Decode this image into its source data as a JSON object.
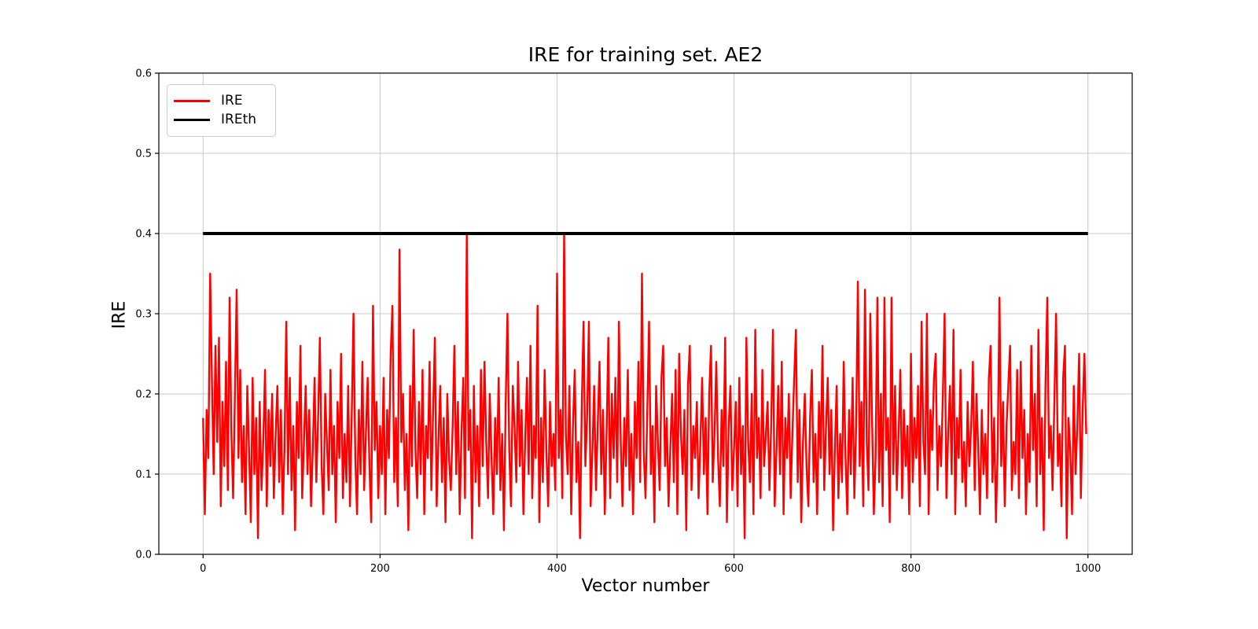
{
  "chart_data": {
    "type": "line",
    "title": "IRE for training set. AE2",
    "xlabel": "Vector number",
    "ylabel": "IRE",
    "xlim": [
      -50,
      1050
    ],
    "ylim": [
      0,
      0.6
    ],
    "x_ticks": [
      "0",
      "200",
      "400",
      "600",
      "800",
      "1000"
    ],
    "y_ticks": [
      "0.0",
      "0.1",
      "0.2",
      "0.3",
      "0.4",
      "0.5",
      "0.6"
    ],
    "grid": true,
    "colors": {
      "series_red": "#ff0000",
      "threshold_black": "#000000",
      "grid": "#c8c8c8",
      "spine": "#000000",
      "background": "#ffffff",
      "text": "#000000"
    },
    "legend": {
      "position": "upper left",
      "entries": [
        {
          "label": "IRE",
          "color": "#ff0000"
        },
        {
          "label": "IREth",
          "color": "#000000"
        }
      ]
    },
    "series": [
      {
        "name": "IRE",
        "color": "#ff0000",
        "linewidth": 2.4,
        "x_start": 0,
        "x_step": 2,
        "values": [
          0.17,
          0.05,
          0.18,
          0.12,
          0.35,
          0.22,
          0.1,
          0.26,
          0.14,
          0.27,
          0.06,
          0.19,
          0.11,
          0.24,
          0.08,
          0.32,
          0.15,
          0.07,
          0.2,
          0.33,
          0.12,
          0.23,
          0.09,
          0.16,
          0.05,
          0.21,
          0.13,
          0.04,
          0.22,
          0.1,
          0.17,
          0.02,
          0.19,
          0.08,
          0.14,
          0.23,
          0.06,
          0.18,
          0.11,
          0.2,
          0.07,
          0.15,
          0.21,
          0.09,
          0.18,
          0.05,
          0.13,
          0.29,
          0.1,
          0.22,
          0.08,
          0.16,
          0.03,
          0.19,
          0.12,
          0.26,
          0.07,
          0.14,
          0.21,
          0.1,
          0.18,
          0.06,
          0.13,
          0.22,
          0.09,
          0.17,
          0.27,
          0.11,
          0.05,
          0.2,
          0.14,
          0.08,
          0.23,
          0.1,
          0.16,
          0.04,
          0.19,
          0.12,
          0.25,
          0.07,
          0.15,
          0.09,
          0.21,
          0.06,
          0.17,
          0.3,
          0.12,
          0.05,
          0.18,
          0.1,
          0.24,
          0.08,
          0.15,
          0.22,
          0.11,
          0.04,
          0.31,
          0.13,
          0.19,
          0.07,
          0.16,
          0.1,
          0.22,
          0.05,
          0.18,
          0.12,
          0.25,
          0.31,
          0.09,
          0.17,
          0.06,
          0.38,
          0.14,
          0.2,
          0.08,
          0.15,
          0.03,
          0.21,
          0.11,
          0.28,
          0.13,
          0.07,
          0.19,
          0.1,
          0.23,
          0.05,
          0.16,
          0.12,
          0.24,
          0.08,
          0.18,
          0.27,
          0.06,
          0.14,
          0.21,
          0.09,
          0.17,
          0.04,
          0.2,
          0.12,
          0.08,
          0.16,
          0.26,
          0.1,
          0.19,
          0.05,
          0.15,
          0.22,
          0.07,
          0.4,
          0.13,
          0.18,
          0.02,
          0.21,
          0.09,
          0.16,
          0.06,
          0.23,
          0.11,
          0.24,
          0.14,
          0.07,
          0.2,
          0.12,
          0.05,
          0.17,
          0.1,
          0.22,
          0.08,
          0.15,
          0.03,
          0.19,
          0.3,
          0.13,
          0.06,
          0.21,
          0.16,
          0.09,
          0.24,
          0.11,
          0.18,
          0.05,
          0.14,
          0.22,
          0.1,
          0.26,
          0.07,
          0.16,
          0.12,
          0.31,
          0.04,
          0.17,
          0.09,
          0.23,
          0.13,
          0.06,
          0.19,
          0.11,
          0.15,
          0.08,
          0.35,
          0.12,
          0.18,
          0.07,
          0.4,
          0.15,
          0.1,
          0.21,
          0.05,
          0.16,
          0.23,
          0.09,
          0.14,
          0.02,
          0.19,
          0.29,
          0.11,
          0.17,
          0.29,
          0.06,
          0.13,
          0.21,
          0.08,
          0.16,
          0.24,
          0.1,
          0.18,
          0.05,
          0.15,
          0.27,
          0.07,
          0.2,
          0.12,
          0.22,
          0.09,
          0.29,
          0.14,
          0.06,
          0.17,
          0.11,
          0.23,
          0.08,
          0.15,
          0.05,
          0.19,
          0.12,
          0.24,
          0.09,
          0.35,
          0.13,
          0.07,
          0.18,
          0.29,
          0.1,
          0.16,
          0.04,
          0.21,
          0.14,
          0.08,
          0.22,
          0.26,
          0.11,
          0.17,
          0.06,
          0.13,
          0.2,
          0.09,
          0.23,
          0.05,
          0.25,
          0.15,
          0.1,
          0.18,
          0.03,
          0.21,
          0.26,
          0.08,
          0.16,
          0.12,
          0.19,
          0.07,
          0.14,
          0.22,
          0.1,
          0.17,
          0.05,
          0.2,
          0.26,
          0.09,
          0.15,
          0.24,
          0.12,
          0.06,
          0.18,
          0.11,
          0.27,
          0.04,
          0.16,
          0.21,
          0.08,
          0.13,
          0.19,
          0.06,
          0.22,
          0.1,
          0.16,
          0.02,
          0.27,
          0.14,
          0.09,
          0.2,
          0.05,
          0.28,
          0.12,
          0.17,
          0.07,
          0.23,
          0.11,
          0.15,
          0.19,
          0.08,
          0.16,
          0.28,
          0.06,
          0.13,
          0.21,
          0.1,
          0.24,
          0.05,
          0.17,
          0.12,
          0.2,
          0.07,
          0.15,
          0.22,
          0.28,
          0.09,
          0.18,
          0.04,
          0.14,
          0.2,
          0.11,
          0.06,
          0.17,
          0.23,
          0.09,
          0.15,
          0.05,
          0.19,
          0.12,
          0.26,
          0.08,
          0.16,
          0.22,
          0.1,
          0.18,
          0.03,
          0.13,
          0.21,
          0.07,
          0.15,
          0.09,
          0.24,
          0.12,
          0.05,
          0.18,
          0.1,
          0.22,
          0.07,
          0.16,
          0.34,
          0.11,
          0.19,
          0.06,
          0.33,
          0.14,
          0.08,
          0.3,
          0.17,
          0.05,
          0.12,
          0.32,
          0.09,
          0.2,
          0.06,
          0.32,
          0.13,
          0.17,
          0.04,
          0.32,
          0.1,
          0.21,
          0.08,
          0.15,
          0.23,
          0.07,
          0.18,
          0.11,
          0.16,
          0.05,
          0.25,
          0.09,
          0.17,
          0.12,
          0.21,
          0.06,
          0.29,
          0.14,
          0.1,
          0.3,
          0.05,
          0.18,
          0.13,
          0.22,
          0.25,
          0.08,
          0.16,
          0.11,
          0.2,
          0.3,
          0.07,
          0.15,
          0.21,
          0.1,
          0.28,
          0.05,
          0.17,
          0.12,
          0.23,
          0.09,
          0.14,
          0.06,
          0.19,
          0.11,
          0.16,
          0.24,
          0.08,
          0.2,
          0.13,
          0.05,
          0.18,
          0.1,
          0.15,
          0.07,
          0.22,
          0.26,
          0.09,
          0.17,
          0.04,
          0.13,
          0.32,
          0.11,
          0.19,
          0.06,
          0.16,
          0.21,
          0.26,
          0.08,
          0.14,
          0.1,
          0.23,
          0.07,
          0.24,
          0.12,
          0.18,
          0.05,
          0.15,
          0.09,
          0.26,
          0.13,
          0.2,
          0.06,
          0.28,
          0.1,
          0.17,
          0.03,
          0.21,
          0.32,
          0.12,
          0.16,
          0.08,
          0.19,
          0.3,
          0.11,
          0.15,
          0.06,
          0.22,
          0.26,
          0.02,
          0.17,
          0.13,
          0.05,
          0.21,
          0.1,
          0.16,
          0.25,
          0.07,
          0.18,
          0.25,
          0.15
        ]
      },
      {
        "name": "IREth",
        "color": "#000000",
        "linewidth": 4,
        "type": "hline",
        "y": 0.4,
        "x_range": [
          0,
          1000
        ]
      }
    ]
  }
}
